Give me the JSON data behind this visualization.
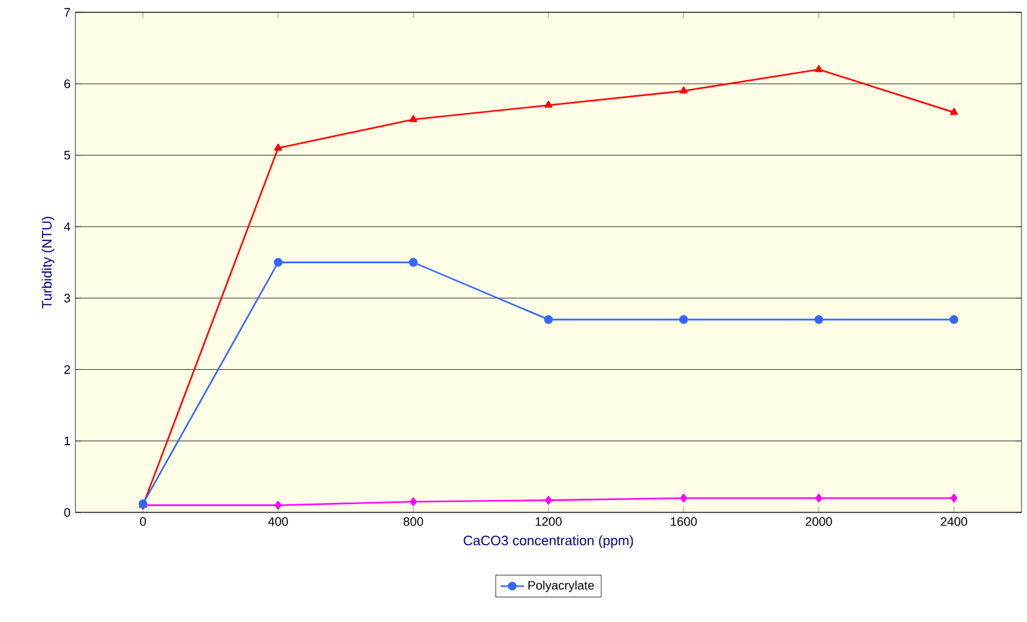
{
  "chart_data": {
    "type": "line",
    "xlabel": "CaCO3 concentration (ppm)",
    "ylabel": "Turbidity (NTU)",
    "categories": [
      "0",
      "400",
      "800",
      "1200",
      "1600",
      "2000",
      "2400"
    ],
    "series": [
      {
        "color": "#ff00ff",
        "marker": "diamond",
        "values": [
          0.1,
          0.1,
          0.15,
          0.17,
          0.2,
          0.2,
          0.2
        ]
      },
      {
        "color": "#ff0000",
        "marker": "triangle",
        "values": [
          0.1,
          5.1,
          5.5,
          5.7,
          5.9,
          6.2,
          5.6
        ]
      },
      {
        "name": "Polyacrylate",
        "color": "#3366ff",
        "marker": "circle",
        "values": [
          0.12,
          3.5,
          3.5,
          2.7,
          2.7,
          2.7,
          2.7
        ]
      }
    ],
    "ylim": [
      0,
      7
    ],
    "yticks": [
      0,
      1,
      2,
      3,
      4,
      5,
      6,
      7
    ],
    "grid": "y",
    "legend": "bottom"
  }
}
